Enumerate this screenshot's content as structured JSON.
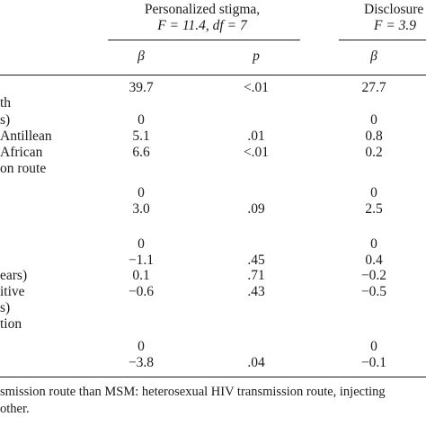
{
  "header": {
    "group1": {
      "line1": "Personalized stigma,",
      "line2": "F = 11.4, df = 7"
    },
    "group2": {
      "line1": "Disclosure",
      "line2": "F = 3.9"
    }
  },
  "subheaders": {
    "beta1": "β",
    "p1": "p",
    "beta2": "β"
  },
  "rows": [
    {
      "label": "",
      "beta1": "39.7",
      "p1": "<.01",
      "beta2": "27.7"
    },
    {
      "label": "th",
      "beta1": "",
      "p1": "",
      "beta2": ""
    },
    {
      "label": "s)",
      "beta1": "0",
      "p1": "",
      "beta2": "0"
    },
    {
      "label": "Antillean",
      "beta1": "5.1",
      "p1": ".01",
      "beta2": "0.8"
    },
    {
      "label": "African",
      "beta1": "6.6",
      "p1": "<.01",
      "beta2": "0.2"
    },
    {
      "label": "on route",
      "beta1": "",
      "p1": "",
      "beta2": ""
    },
    {
      "label": "",
      "beta1": "0",
      "p1": "",
      "beta2": "0"
    },
    {
      "label": "",
      "beta1": "3.0",
      "p1": ".09",
      "beta2": "2.5"
    },
    {
      "label": "",
      "beta1": "0",
      "p1": "",
      "beta2": "0"
    },
    {
      "label": "",
      "beta1": "−1.1",
      "p1": ".45",
      "beta2": "0.4"
    },
    {
      "label": "ears)",
      "beta1": "0.1",
      "p1": ".71",
      "beta2": "−0.2"
    },
    {
      "label": "itive",
      "beta1": "−0.6",
      "p1": ".43",
      "beta2": "−0.5"
    },
    {
      "label": "s)",
      "beta1": "",
      "p1": "",
      "beta2": ""
    },
    {
      "label": "tion",
      "beta1": "",
      "p1": "",
      "beta2": ""
    },
    {
      "label": "",
      "beta1": "0",
      "p1": "",
      "beta2": "0"
    },
    {
      "label": "",
      "beta1": "−3.8",
      "p1": ".04",
      "beta2": "−0.1"
    }
  ],
  "footnote": {
    "line1": "smission route than MSM: heterosexual HIV transmission route, injecting",
    "line2": "other."
  }
}
